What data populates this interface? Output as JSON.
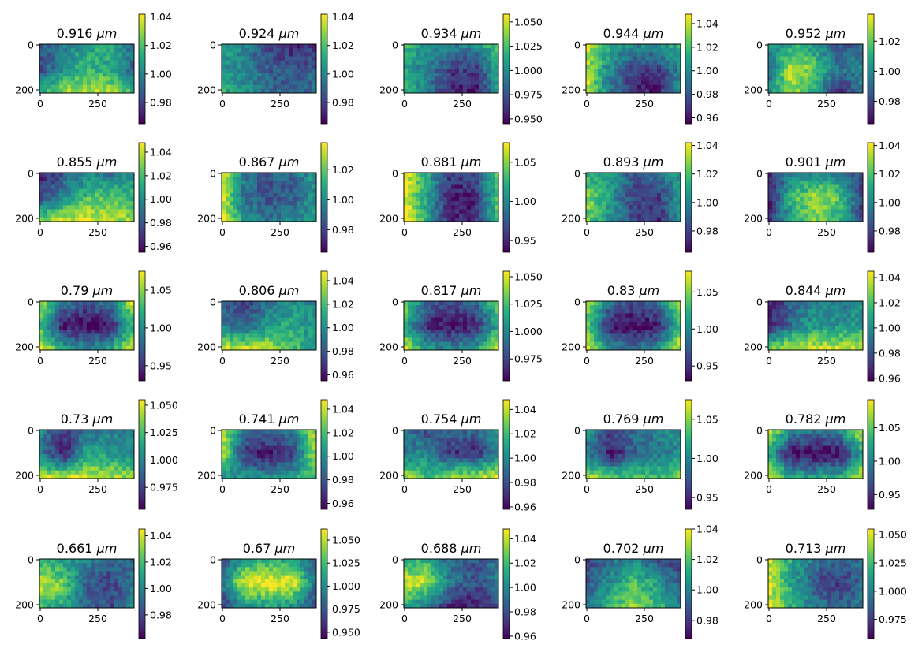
{
  "chart_data": {
    "type": "heatmap",
    "colormap": "viridis",
    "x_ticks": [
      "0",
      "250"
    ],
    "y_ticks": [
      "0",
      "200"
    ],
    "x_range": [
      0,
      400
    ],
    "y_range": [
      0,
      210
    ],
    "panels": [
      {
        "title_value": "0.916",
        "unit": "μm",
        "colorbar": {
          "range": [
            0.965,
            1.042
          ],
          "ticks": [
            "0.98",
            "1.00",
            "1.02",
            "1.04"
          ]
        },
        "pattern": [
          [
            0.3,
            0.4,
            0.6,
            0.6,
            0.4
          ],
          [
            0.2,
            0.5,
            0.65,
            0.6,
            0.3
          ],
          [
            0.6,
            0.85,
            0.9,
            0.85,
            0.7
          ]
        ]
      },
      {
        "title_value": "0.924",
        "unit": "μm",
        "colorbar": {
          "range": [
            0.965,
            1.042
          ],
          "ticks": [
            "0.98",
            "1.00",
            "1.02",
            "1.04"
          ]
        },
        "pattern": [
          [
            0.6,
            0.45,
            0.2,
            0.1,
            0.15
          ],
          [
            0.55,
            0.4,
            0.3,
            0.25,
            0.3
          ],
          [
            0.65,
            0.5,
            0.35,
            0.3,
            0.4
          ]
        ]
      },
      {
        "title_value": "0.934",
        "unit": "μm",
        "colorbar": {
          "range": [
            0.945,
            1.058
          ],
          "ticks": [
            "0.950",
            "0.975",
            "1.000",
            "1.025",
            "1.050"
          ]
        },
        "pattern": [
          [
            0.7,
            0.5,
            0.45,
            0.5,
            0.75
          ],
          [
            0.6,
            0.4,
            0.2,
            0.15,
            0.6
          ],
          [
            0.7,
            0.45,
            0.1,
            0.05,
            0.55
          ]
        ]
      },
      {
        "title_value": "0.944",
        "unit": "μm",
        "colorbar": {
          "range": [
            0.955,
            1.048
          ],
          "ticks": [
            "0.96",
            "0.98",
            "1.00",
            "1.02",
            "1.04"
          ]
        },
        "pattern": [
          [
            0.95,
            0.6,
            0.45,
            0.5,
            0.65
          ],
          [
            0.9,
            0.45,
            0.25,
            0.15,
            0.5
          ],
          [
            0.95,
            0.4,
            0.1,
            0.05,
            0.5
          ]
        ]
      },
      {
        "title_value": "0.952",
        "unit": "μm",
        "colorbar": {
          "range": [
            0.965,
            1.038
          ],
          "ticks": [
            "0.98",
            "1.00",
            "1.02"
          ]
        },
        "pattern": [
          [
            0.5,
            0.6,
            0.5,
            0.25,
            0.35
          ],
          [
            0.3,
            0.95,
            0.75,
            0.4,
            0.45
          ],
          [
            0.5,
            0.85,
            0.55,
            0.1,
            0.4
          ]
        ]
      },
      {
        "title_value": "0.855",
        "unit": "μm",
        "colorbar": {
          "range": [
            0.955,
            1.048
          ],
          "ticks": [
            "0.96",
            "0.98",
            "1.00",
            "1.02",
            "1.04"
          ]
        },
        "pattern": [
          [
            0.1,
            0.25,
            0.45,
            0.35,
            0.5
          ],
          [
            0.2,
            0.45,
            0.7,
            0.75,
            0.65
          ],
          [
            0.8,
            0.95,
            0.95,
            0.9,
            0.85
          ]
        ]
      },
      {
        "title_value": "0.867",
        "unit": "μm",
        "colorbar": {
          "range": [
            0.965,
            1.038
          ],
          "ticks": [
            "0.98",
            "1.00",
            "1.02"
          ]
        },
        "pattern": [
          [
            0.95,
            0.4,
            0.3,
            0.35,
            0.55
          ],
          [
            0.95,
            0.35,
            0.25,
            0.3,
            0.5
          ],
          [
            0.95,
            0.55,
            0.4,
            0.45,
            0.6
          ]
        ]
      },
      {
        "title_value": "0.881",
        "unit": "μm",
        "colorbar": {
          "range": [
            0.935,
            1.075
          ],
          "ticks": [
            "0.95",
            "1.00",
            "1.05"
          ]
        },
        "pattern": [
          [
            1.0,
            0.6,
            0.2,
            0.25,
            0.8
          ],
          [
            1.0,
            0.55,
            0.05,
            0.1,
            0.75
          ],
          [
            1.0,
            0.6,
            0.1,
            0.1,
            0.8
          ]
        ]
      },
      {
        "title_value": "0.893",
        "unit": "μm",
        "colorbar": {
          "range": [
            0.965,
            1.042
          ],
          "ticks": [
            "0.98",
            "1.00",
            "1.02",
            "1.04"
          ]
        },
        "pattern": [
          [
            0.6,
            0.5,
            0.3,
            0.35,
            0.55
          ],
          [
            0.85,
            0.55,
            0.2,
            0.15,
            0.55
          ],
          [
            0.75,
            0.5,
            0.25,
            0.1,
            0.5
          ]
        ]
      },
      {
        "title_value": "0.901",
        "unit": "μm",
        "colorbar": {
          "range": [
            0.965,
            1.042
          ],
          "ticks": [
            "0.98",
            "1.00",
            "1.02",
            "1.04"
          ]
        },
        "pattern": [
          [
            0.1,
            0.4,
            0.5,
            0.4,
            0.2
          ],
          [
            0.05,
            0.7,
            0.85,
            0.75,
            0.15
          ],
          [
            0.15,
            0.55,
            0.8,
            0.6,
            0.2
          ]
        ]
      },
      {
        "title_value": "0.79",
        "unit": "μm",
        "colorbar": {
          "range": [
            0.93,
            1.075
          ],
          "ticks": [
            "0.95",
            "1.00",
            "1.05"
          ]
        },
        "pattern": [
          [
            0.95,
            0.45,
            0.3,
            0.45,
            0.95
          ],
          [
            0.7,
            0.05,
            0.0,
            0.05,
            0.7
          ],
          [
            1.0,
            0.6,
            0.5,
            0.6,
            1.0
          ]
        ]
      },
      {
        "title_value": "0.806",
        "unit": "μm",
        "colorbar": {
          "range": [
            0.955,
            1.048
          ],
          "ticks": [
            "0.96",
            "0.98",
            "1.00",
            "1.02",
            "1.04"
          ]
        },
        "pattern": [
          [
            0.3,
            0.15,
            0.4,
            0.5,
            0.45
          ],
          [
            0.4,
            0.3,
            0.55,
            0.6,
            0.5
          ],
          [
            0.95,
            0.95,
            0.9,
            0.7,
            0.6
          ]
        ]
      },
      {
        "title_value": "0.817",
        "unit": "μm",
        "colorbar": {
          "range": [
            0.955,
            1.055
          ],
          "ticks": [
            "0.975",
            "1.000",
            "1.025",
            "1.050"
          ]
        },
        "pattern": [
          [
            0.85,
            0.3,
            0.25,
            0.35,
            0.85
          ],
          [
            0.6,
            0.1,
            0.05,
            0.1,
            0.6
          ],
          [
            0.95,
            0.55,
            0.45,
            0.55,
            0.95
          ]
        ]
      },
      {
        "title_value": "0.83",
        "unit": "μm",
        "colorbar": {
          "range": [
            0.93,
            1.078
          ],
          "ticks": [
            "0.95",
            "1.00",
            "1.05"
          ]
        },
        "pattern": [
          [
            0.9,
            0.4,
            0.25,
            0.4,
            0.9
          ],
          [
            0.75,
            0.05,
            0.0,
            0.05,
            0.75
          ],
          [
            0.95,
            0.5,
            0.4,
            0.5,
            0.95
          ]
        ]
      },
      {
        "title_value": "0.844",
        "unit": "μm",
        "colorbar": {
          "range": [
            0.958,
            1.045
          ],
          "ticks": [
            "0.96",
            "0.98",
            "1.00",
            "1.02",
            "1.04"
          ]
        },
        "pattern": [
          [
            0.1,
            0.3,
            0.45,
            0.4,
            0.5
          ],
          [
            0.05,
            0.4,
            0.55,
            0.5,
            0.55
          ],
          [
            0.8,
            0.95,
            0.95,
            0.95,
            0.9
          ]
        ]
      },
      {
        "title_value": "0.73",
        "unit": "μm",
        "colorbar": {
          "range": [
            0.955,
            1.055
          ],
          "ticks": [
            "0.975",
            "1.000",
            "1.025",
            "1.050"
          ]
        },
        "pattern": [
          [
            0.5,
            0.15,
            0.35,
            0.45,
            0.4
          ],
          [
            0.45,
            0.05,
            0.6,
            0.55,
            0.5
          ],
          [
            0.95,
            0.95,
            0.95,
            0.9,
            0.85
          ]
        ]
      },
      {
        "title_value": "0.741",
        "unit": "μm",
        "colorbar": {
          "range": [
            0.955,
            1.048
          ],
          "ticks": [
            "0.96",
            "0.98",
            "1.00",
            "1.02",
            "1.04"
          ]
        },
        "pattern": [
          [
            0.95,
            0.4,
            0.3,
            0.45,
            0.9
          ],
          [
            0.9,
            0.15,
            0.05,
            0.2,
            0.9
          ],
          [
            0.5,
            0.55,
            0.5,
            0.6,
            0.7
          ]
        ]
      },
      {
        "title_value": "0.754",
        "unit": "μm",
        "colorbar": {
          "range": [
            0.958,
            1.048
          ],
          "ticks": [
            "0.96",
            "0.98",
            "1.00",
            "1.02",
            "1.04"
          ]
        },
        "pattern": [
          [
            0.45,
            0.2,
            0.3,
            0.35,
            0.5
          ],
          [
            0.4,
            0.5,
            0.15,
            0.1,
            0.5
          ],
          [
            0.95,
            0.65,
            0.9,
            0.95,
            0.95
          ]
        ]
      },
      {
        "title_value": "0.769",
        "unit": "μm",
        "colorbar": {
          "range": [
            0.935,
            1.075
          ],
          "ticks": [
            "0.95",
            "1.00",
            "1.05"
          ]
        },
        "pattern": [
          [
            0.55,
            0.2,
            0.35,
            0.45,
            0.5
          ],
          [
            0.4,
            0.05,
            0.3,
            0.4,
            0.5
          ],
          [
            0.9,
            0.8,
            0.75,
            0.7,
            0.8
          ]
        ]
      },
      {
        "title_value": "0.782",
        "unit": "μm",
        "colorbar": {
          "range": [
            0.928,
            1.092
          ],
          "ticks": [
            "0.95",
            "1.00",
            "1.05"
          ]
        },
        "pattern": [
          [
            0.95,
            0.5,
            0.4,
            0.5,
            0.95
          ],
          [
            0.6,
            0.02,
            0.0,
            0.02,
            0.6
          ],
          [
            0.95,
            0.65,
            0.6,
            0.65,
            0.95
          ]
        ]
      },
      {
        "title_value": "0.661",
        "unit": "μm",
        "colorbar": {
          "range": [
            0.962,
            1.045
          ],
          "ticks": [
            "0.98",
            "1.00",
            "1.02",
            "1.04"
          ]
        },
        "pattern": [
          [
            0.6,
            0.55,
            0.45,
            0.35,
            0.35
          ],
          [
            0.95,
            0.8,
            0.3,
            0.2,
            0.4
          ],
          [
            0.65,
            0.55,
            0.35,
            0.2,
            0.45
          ]
        ]
      },
      {
        "title_value": "0.67",
        "unit": "μm",
        "colorbar": {
          "range": [
            0.943,
            1.062
          ],
          "ticks": [
            "0.950",
            "0.975",
            "1.000",
            "1.025",
            "1.050"
          ]
        },
        "pattern": [
          [
            0.25,
            0.55,
            0.65,
            0.55,
            0.25
          ],
          [
            0.4,
            1.0,
            1.0,
            1.0,
            0.4
          ],
          [
            0.15,
            0.45,
            0.55,
            0.45,
            0.15
          ]
        ]
      },
      {
        "title_value": "0.688",
        "unit": "μm",
        "colorbar": {
          "range": [
            0.958,
            1.048
          ],
          "ticks": [
            "0.96",
            "0.98",
            "1.00",
            "1.02",
            "1.04"
          ]
        },
        "pattern": [
          [
            0.6,
            0.65,
            0.35,
            0.25,
            0.4
          ],
          [
            0.95,
            0.9,
            0.4,
            0.25,
            0.45
          ],
          [
            0.6,
            0.35,
            0.1,
            0.05,
            0.25
          ]
        ]
      },
      {
        "title_value": "0.702",
        "unit": "μm",
        "colorbar": {
          "range": [
            0.968,
            1.04
          ],
          "ticks": [
            "0.98",
            "1.00",
            "1.02",
            "1.04"
          ]
        },
        "pattern": [
          [
            0.2,
            0.35,
            0.5,
            0.25,
            0.15
          ],
          [
            0.25,
            0.5,
            0.7,
            0.55,
            0.3
          ],
          [
            0.35,
            0.7,
            0.85,
            0.7,
            0.45
          ]
        ]
      },
      {
        "title_value": "0.713",
        "unit": "μm",
        "colorbar": {
          "range": [
            0.958,
            1.055
          ],
          "ticks": [
            "0.975",
            "1.000",
            "1.025",
            "1.050"
          ]
        },
        "pattern": [
          [
            0.95,
            0.6,
            0.4,
            0.3,
            0.35
          ],
          [
            0.95,
            0.55,
            0.25,
            0.15,
            0.35
          ],
          [
            0.95,
            0.65,
            0.45,
            0.3,
            0.45
          ]
        ]
      }
    ]
  }
}
